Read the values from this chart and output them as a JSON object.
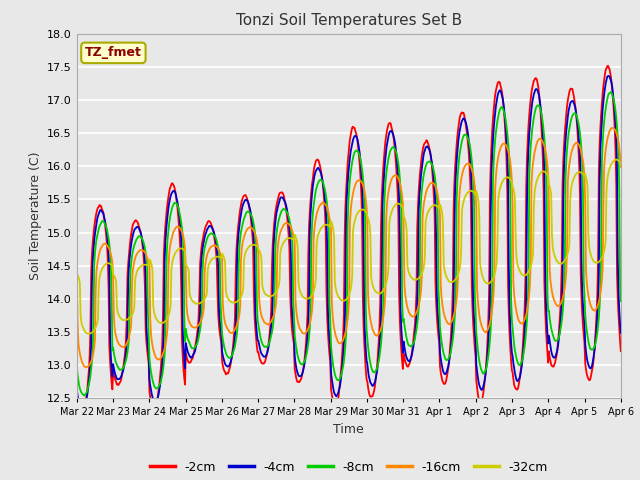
{
  "title": "Tonzi Soil Temperatures Set B",
  "xlabel": "Time",
  "ylabel": "Soil Temperature (C)",
  "ylim": [
    12.5,
    18.0
  ],
  "yticks": [
    12.5,
    13.0,
    13.5,
    14.0,
    14.5,
    15.0,
    15.5,
    16.0,
    16.5,
    17.0,
    17.5,
    18.0
  ],
  "xtick_labels": [
    "Mar 22",
    "Mar 23",
    "Mar 24",
    "Mar 25",
    "Mar 26",
    "Mar 27",
    "Mar 28",
    "Mar 29",
    "Mar 30",
    "Mar 31",
    "Apr 1",
    "Apr 2",
    "Apr 3",
    "Apr 4",
    "Apr 5",
    "Apr 6"
  ],
  "series_colors": [
    "#ff0000",
    "#0000cc",
    "#00cc00",
    "#ff8800",
    "#cccc00"
  ],
  "series_labels": [
    "-2cm",
    "-4cm",
    "-8cm",
    "-16cm",
    "-32cm"
  ],
  "legend_label": "TZ_fmet",
  "background_color": "#e8e8e8",
  "plot_bg_color": "#e8e8e8",
  "grid_color": "#ffffff",
  "n_days": 15,
  "points_per_day": 48
}
